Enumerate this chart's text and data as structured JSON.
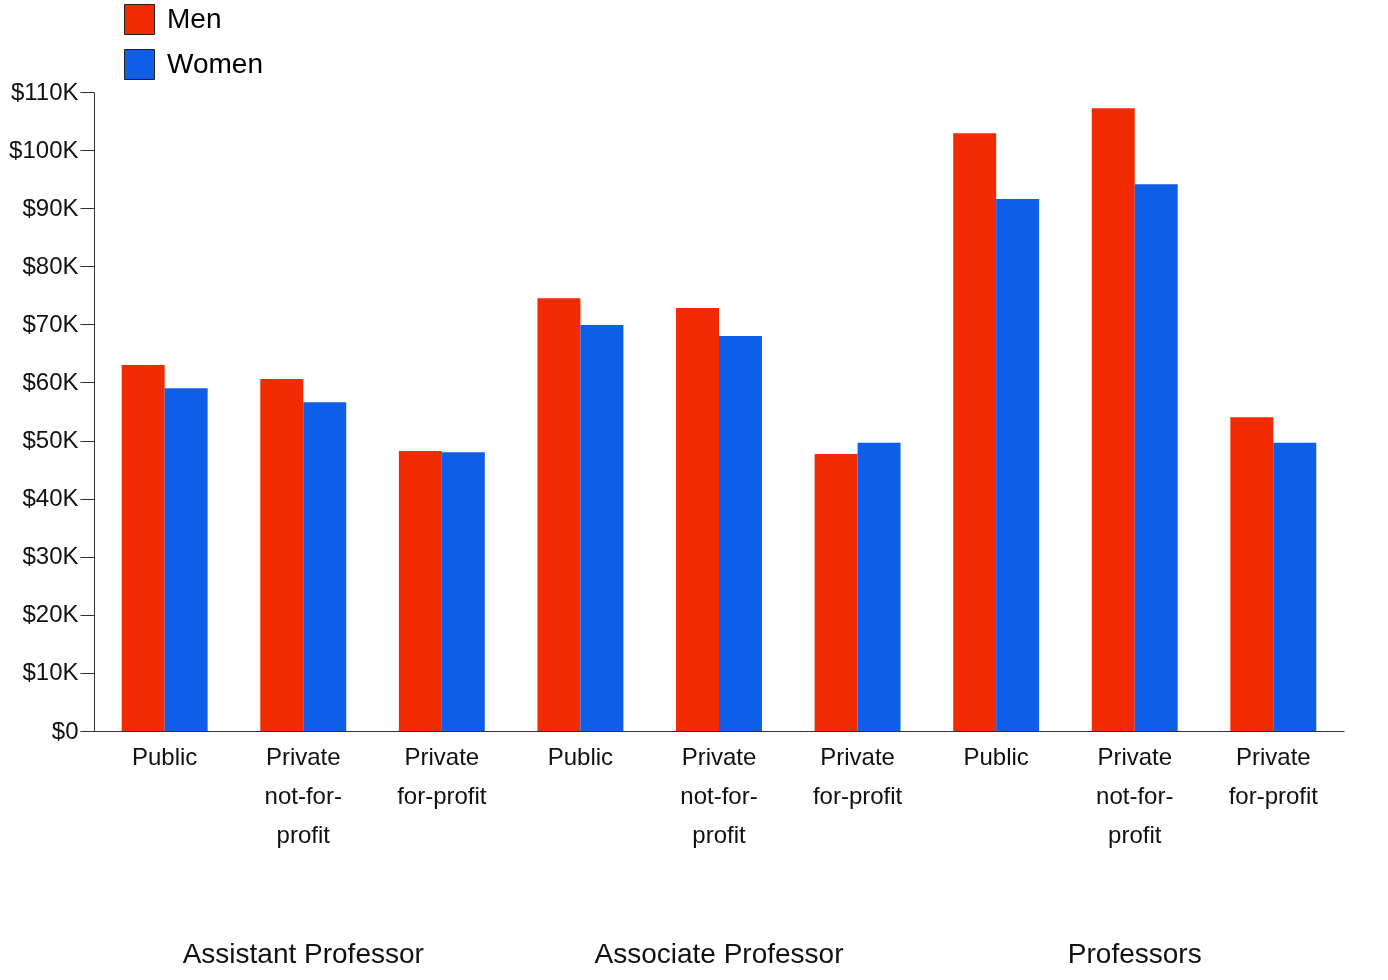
{
  "chart_data": {
    "type": "bar",
    "categories": [
      "Public",
      "Private not-for-profit",
      "Private for-profit",
      "Public",
      "Private not-for-profit",
      "Private for-profit",
      "Public",
      "Private not-for-profit",
      "Private for-profit"
    ],
    "series": [
      {
        "name": "Men",
        "color": "#f22a00",
        "values": [
          63000,
          60600,
          48200,
          74500,
          72800,
          47700,
          102900,
          107200,
          54000
        ]
      },
      {
        "name": "Women",
        "color": "#0f5ee8",
        "values": [
          59000,
          56600,
          48000,
          69900,
          68000,
          49600,
          91600,
          94100,
          49600
        ]
      }
    ],
    "ylim": [
      0,
      110000
    ],
    "yticks": [
      {
        "value": 0,
        "label": "$0"
      },
      {
        "value": 10000,
        "label": "$10K"
      },
      {
        "value": 20000,
        "label": "$20K"
      },
      {
        "value": 30000,
        "label": "$30K"
      },
      {
        "value": 40000,
        "label": "$40K"
      },
      {
        "value": 50000,
        "label": "$50K"
      },
      {
        "value": 60000,
        "label": "$60K"
      },
      {
        "value": 70000,
        "label": "$70K"
      },
      {
        "value": 80000,
        "label": "$80K"
      },
      {
        "value": 90000,
        "label": "$90K"
      },
      {
        "value": 100000,
        "label": "$100K"
      },
      {
        "value": 110000,
        "label": "$110K"
      }
    ],
    "annotations": [
      "Assistant Professor",
      "Associate Professor",
      "Professors"
    ],
    "legend": "top left",
    "grid": false
  }
}
